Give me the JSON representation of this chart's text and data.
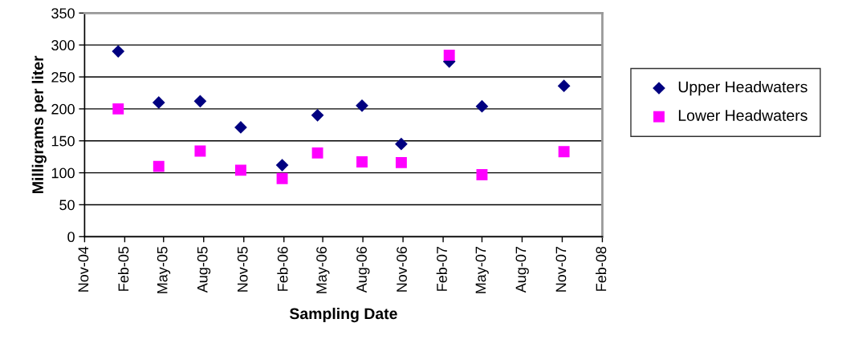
{
  "chart_data": {
    "type": "scatter",
    "xlabel": "Sampling Date",
    "ylabel": "Milligrams per liter",
    "x": [
      "2005-01-17",
      "2005-04-20",
      "2005-07-24",
      "2005-10-25",
      "2006-01-28",
      "2006-04-19",
      "2006-07-30",
      "2006-10-28",
      "2007-02-15",
      "2007-05-01",
      "2007-11-05"
    ],
    "series": [
      {
        "name": "Upper Headwaters",
        "color": "#000080",
        "marker": "diamond",
        "values": [
          290,
          210,
          212,
          171,
          112,
          190,
          205,
          145,
          274,
          204,
          236
        ]
      },
      {
        "name": "Lower Headwaters",
        "color": "#ff00ff",
        "marker": "square",
        "values": [
          200,
          110,
          134,
          104,
          91,
          131,
          117,
          116,
          284,
          97,
          133
        ]
      }
    ],
    "xlim": [
      "2004-11-01",
      "2008-02-01"
    ],
    "xticks": [
      {
        "value": "2004-11-01",
        "label": "Nov-04"
      },
      {
        "value": "2005-02-01",
        "label": "Feb-05"
      },
      {
        "value": "2005-05-01",
        "label": "May-05"
      },
      {
        "value": "2005-08-01",
        "label": "Aug-05"
      },
      {
        "value": "2005-11-01",
        "label": "Nov-05"
      },
      {
        "value": "2006-02-01",
        "label": "Feb-06"
      },
      {
        "value": "2006-05-01",
        "label": "May-06"
      },
      {
        "value": "2006-08-01",
        "label": "Aug-06"
      },
      {
        "value": "2006-11-01",
        "label": "Nov-06"
      },
      {
        "value": "2007-02-01",
        "label": "Feb-07"
      },
      {
        "value": "2007-05-01",
        "label": "May-07"
      },
      {
        "value": "2007-08-01",
        "label": "Aug-07"
      },
      {
        "value": "2007-11-01",
        "label": "Nov-07"
      },
      {
        "value": "2008-02-01",
        "label": "Feb-08"
      }
    ],
    "ylim": [
      0,
      350
    ],
    "yticks": [
      0,
      50,
      100,
      150,
      200,
      250,
      300,
      350
    ],
    "grid": "y",
    "legend": "right"
  }
}
